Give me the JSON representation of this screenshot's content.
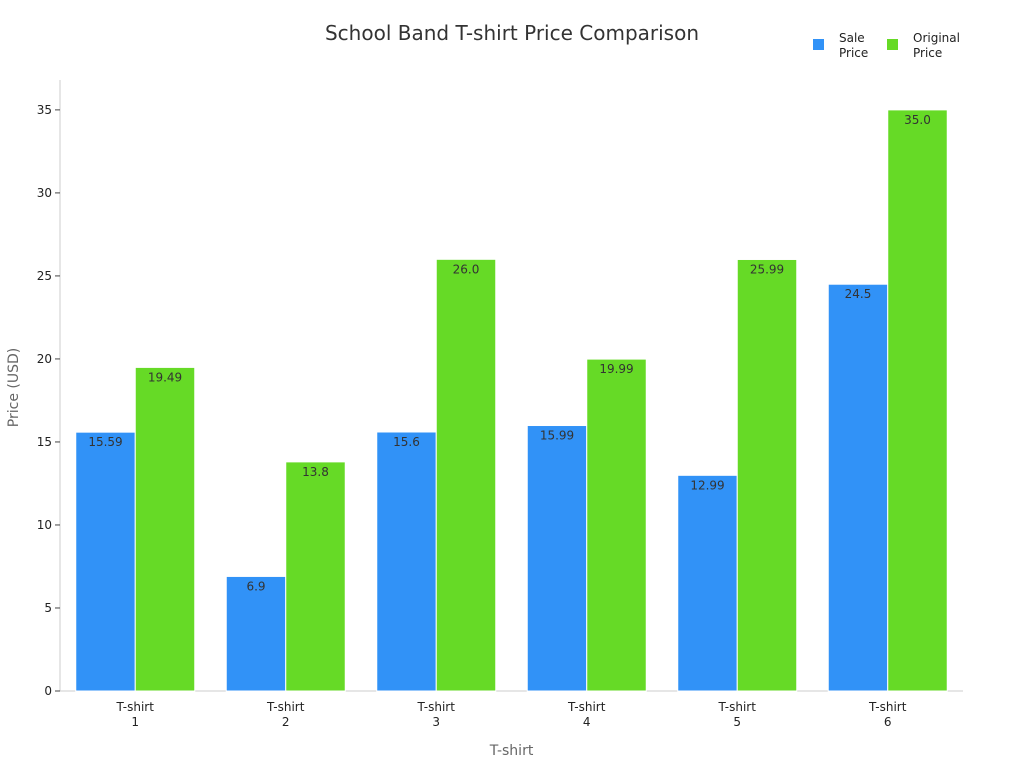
{
  "chart_data": {
    "type": "bar",
    "title": "School Band T-shirt Price Comparison",
    "xlabel": "T-shirt",
    "ylabel": "Price (USD)",
    "categories": [
      [
        "T-shirt",
        "1"
      ],
      [
        "T-shirt",
        "2"
      ],
      [
        "T-shirt",
        "3"
      ],
      [
        "T-shirt",
        "4"
      ],
      [
        "T-shirt",
        "5"
      ],
      [
        "T-shirt",
        "6"
      ]
    ],
    "series": [
      {
        "name": [
          "Sale",
          "Price"
        ],
        "color": "#3192f7",
        "values": [
          15.59,
          6.9,
          15.6,
          15.99,
          12.99,
          24.5
        ],
        "labels": [
          "15.59",
          "6.9",
          "15.6",
          "15.99",
          "12.99",
          "24.5"
        ]
      },
      {
        "name": [
          "Original",
          "Price"
        ],
        "color": "#66da26",
        "values": [
          19.49,
          13.8,
          26.0,
          19.99,
          25.99,
          35.0
        ],
        "labels": [
          "19.49",
          "13.8",
          "26.0",
          "19.99",
          "25.99",
          "35.0"
        ]
      }
    ],
    "ylim": [
      0,
      36.8
    ],
    "yticks": [
      0,
      5,
      10,
      15,
      20,
      25,
      30,
      35
    ],
    "grid": false,
    "legend_position": "top-right"
  }
}
